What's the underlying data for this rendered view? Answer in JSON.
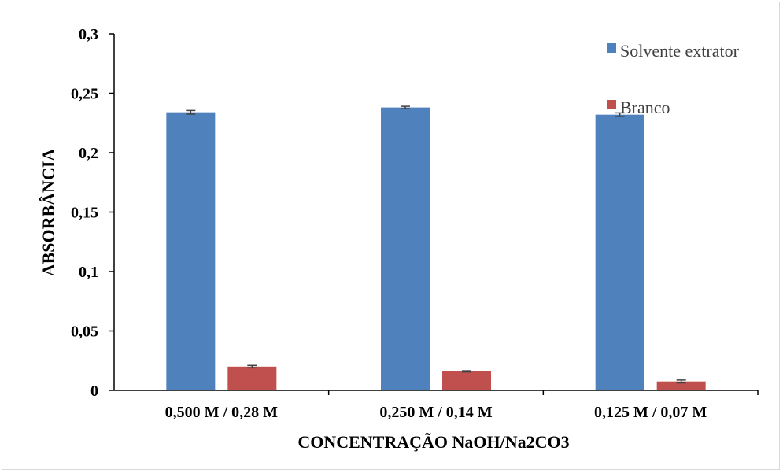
{
  "chart_data": {
    "type": "bar",
    "title": "",
    "xlabel": "CONCENTRAÇÃO NaOH/Na2CO3",
    "ylabel": "ABSORBÂNCIA",
    "ylim": [
      0,
      0.3
    ],
    "yticks": [
      "0",
      "0,05",
      "0,1",
      "0,15",
      "0,2",
      "0,25",
      "0,3"
    ],
    "grid": false,
    "legend_position": "top-right",
    "categories": [
      "0,500 M / 0,28 M",
      "0,250 M / 0,14 M",
      "0,125 M / 0,07 M"
    ],
    "series": [
      {
        "name": "Solvente extrator",
        "color": "#4f81bd",
        "values": [
          0.234,
          0.238,
          0.232
        ],
        "errors": [
          0.0015,
          0.001,
          0.0015
        ]
      },
      {
        "name": "Branco",
        "color": "#c0504d",
        "values": [
          0.02,
          0.016,
          0.0075
        ],
        "errors": [
          0.001,
          0.0005,
          0.0012
        ]
      }
    ]
  }
}
